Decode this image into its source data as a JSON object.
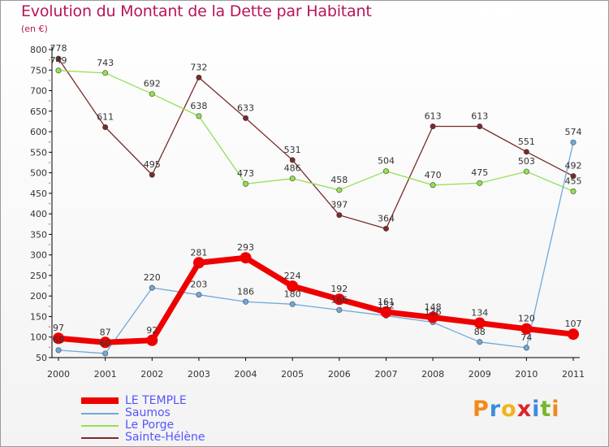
{
  "header": {
    "title": "Evolution du Montant de la Dette par Habitant",
    "subtitle": "(en €)"
  },
  "brand": {
    "letters": [
      "P",
      "r",
      "o",
      "x",
      "i",
      "t",
      "i"
    ],
    "colors": [
      "#f28a1a",
      "#3a8ddd",
      "#f2b21a",
      "#d9262b",
      "#3a8ddd",
      "#76b82a",
      "#f28a1a"
    ]
  },
  "chart_data": {
    "type": "line",
    "title": "Evolution du Montant de la Dette par Habitant",
    "subtitle": "(en €)",
    "xlabel": "",
    "ylabel": "",
    "ylim": [
      50,
      800
    ],
    "yticks": [
      50,
      100,
      150,
      200,
      250,
      300,
      350,
      400,
      450,
      500,
      550,
      600,
      650,
      700,
      750,
      800
    ],
    "x": [
      "2000",
      "2001",
      "2002",
      "2003",
      "2004",
      "2005",
      "2006",
      "2007",
      "2008",
      "2009",
      "2010",
      "2011"
    ],
    "grid": false,
    "legend_position": "bottom-left",
    "series": [
      {
        "name": "LE TEMPLE",
        "color": "#ee0000",
        "values": [
          97,
          87,
          92,
          281,
          293,
          224,
          192,
          161,
          148,
          134,
          120,
          107
        ],
        "labels": [
          "97",
          "87",
          "92",
          "281",
          "293",
          "224",
          "192",
          "161",
          "148",
          "134",
          "120",
          "107"
        ]
      },
      {
        "name": "Saumos",
        "color": "#6fa8dc",
        "values": [
          68,
          60,
          220,
          203,
          186,
          180,
          166,
          152,
          136,
          88,
          74,
          574
        ],
        "labels": [
          "68",
          "60",
          "220",
          "203",
          "186",
          "180",
          "166",
          "152",
          "136",
          "88",
          "74",
          "574"
        ]
      },
      {
        "name": "Le Porge",
        "color": "#93e04f",
        "values": [
          749,
          743,
          692,
          638,
          473,
          486,
          458,
          504,
          470,
          475,
          503,
          455
        ],
        "labels": [
          "749",
          "743",
          "692",
          "638",
          "473",
          "486",
          "458",
          "504",
          "470",
          "475",
          "503",
          "455"
        ]
      },
      {
        "name": "Sainte-Hélène",
        "color": "#7a2a2a",
        "values": [
          778,
          611,
          495,
          732,
          633,
          531,
          397,
          364,
          613,
          613,
          551,
          492
        ],
        "labels": [
          "778",
          "611",
          "495",
          "732",
          "633",
          "531",
          "397",
          "364",
          "613",
          "613",
          "551",
          "492"
        ]
      }
    ]
  }
}
